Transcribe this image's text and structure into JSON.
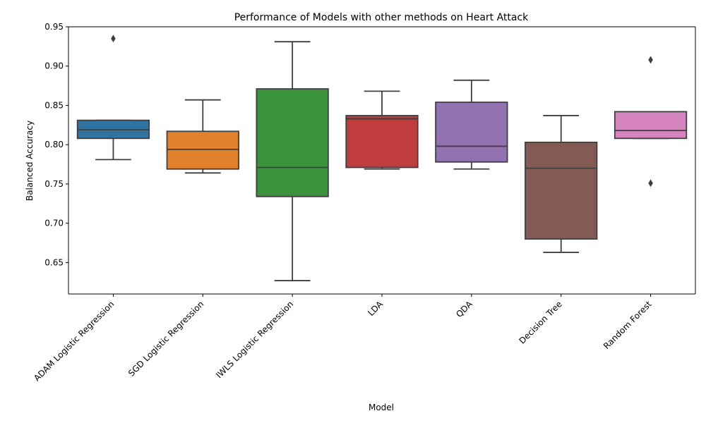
{
  "chart_data": {
    "type": "box",
    "title": "Performance of Models with other methods on Heart Attack",
    "xlabel": "Model",
    "ylabel": "Balanced Accuracy",
    "ylim": [
      0.61,
      0.95
    ],
    "yticks": [
      "0.65",
      "0.70",
      "0.75",
      "0.80",
      "0.85",
      "0.90",
      "0.95"
    ],
    "ytick_values": [
      0.65,
      0.7,
      0.75,
      0.8,
      0.85,
      0.9,
      0.95
    ],
    "grid": false,
    "categories": [
      "ADAM Logistic Regression",
      "SGD Logistic Regression",
      "IWLS Logistic Regression",
      "LDA",
      "QDA",
      "Decision Tree",
      "Random Forest"
    ],
    "series": [
      {
        "min": 0.781,
        "q1": 0.808,
        "median": 0.819,
        "q3": 0.831,
        "max": 0.831,
        "outliers": [
          0.935
        ],
        "color": "#3274a1"
      },
      {
        "min": 0.764,
        "q1": 0.769,
        "median": 0.794,
        "q3": 0.817,
        "max": 0.857,
        "outliers": [],
        "color": "#e1812c"
      },
      {
        "min": 0.627,
        "q1": 0.734,
        "median": 0.771,
        "q3": 0.871,
        "max": 0.931,
        "outliers": [],
        "color": "#3a923a"
      },
      {
        "min": 0.769,
        "q1": 0.771,
        "median": 0.833,
        "q3": 0.837,
        "max": 0.868,
        "outliers": [],
        "color": "#c03d3e"
      },
      {
        "min": 0.769,
        "q1": 0.778,
        "median": 0.798,
        "q3": 0.854,
        "max": 0.882,
        "outliers": [],
        "color": "#9372b2"
      },
      {
        "min": 0.663,
        "q1": 0.68,
        "median": 0.77,
        "q3": 0.803,
        "max": 0.837,
        "outliers": [],
        "color": "#845b53"
      },
      {
        "min": 0.808,
        "q1": 0.808,
        "median": 0.818,
        "q3": 0.842,
        "max": 0.842,
        "outliers": [
          0.908,
          0.751
        ],
        "color": "#d684bd"
      }
    ]
  }
}
